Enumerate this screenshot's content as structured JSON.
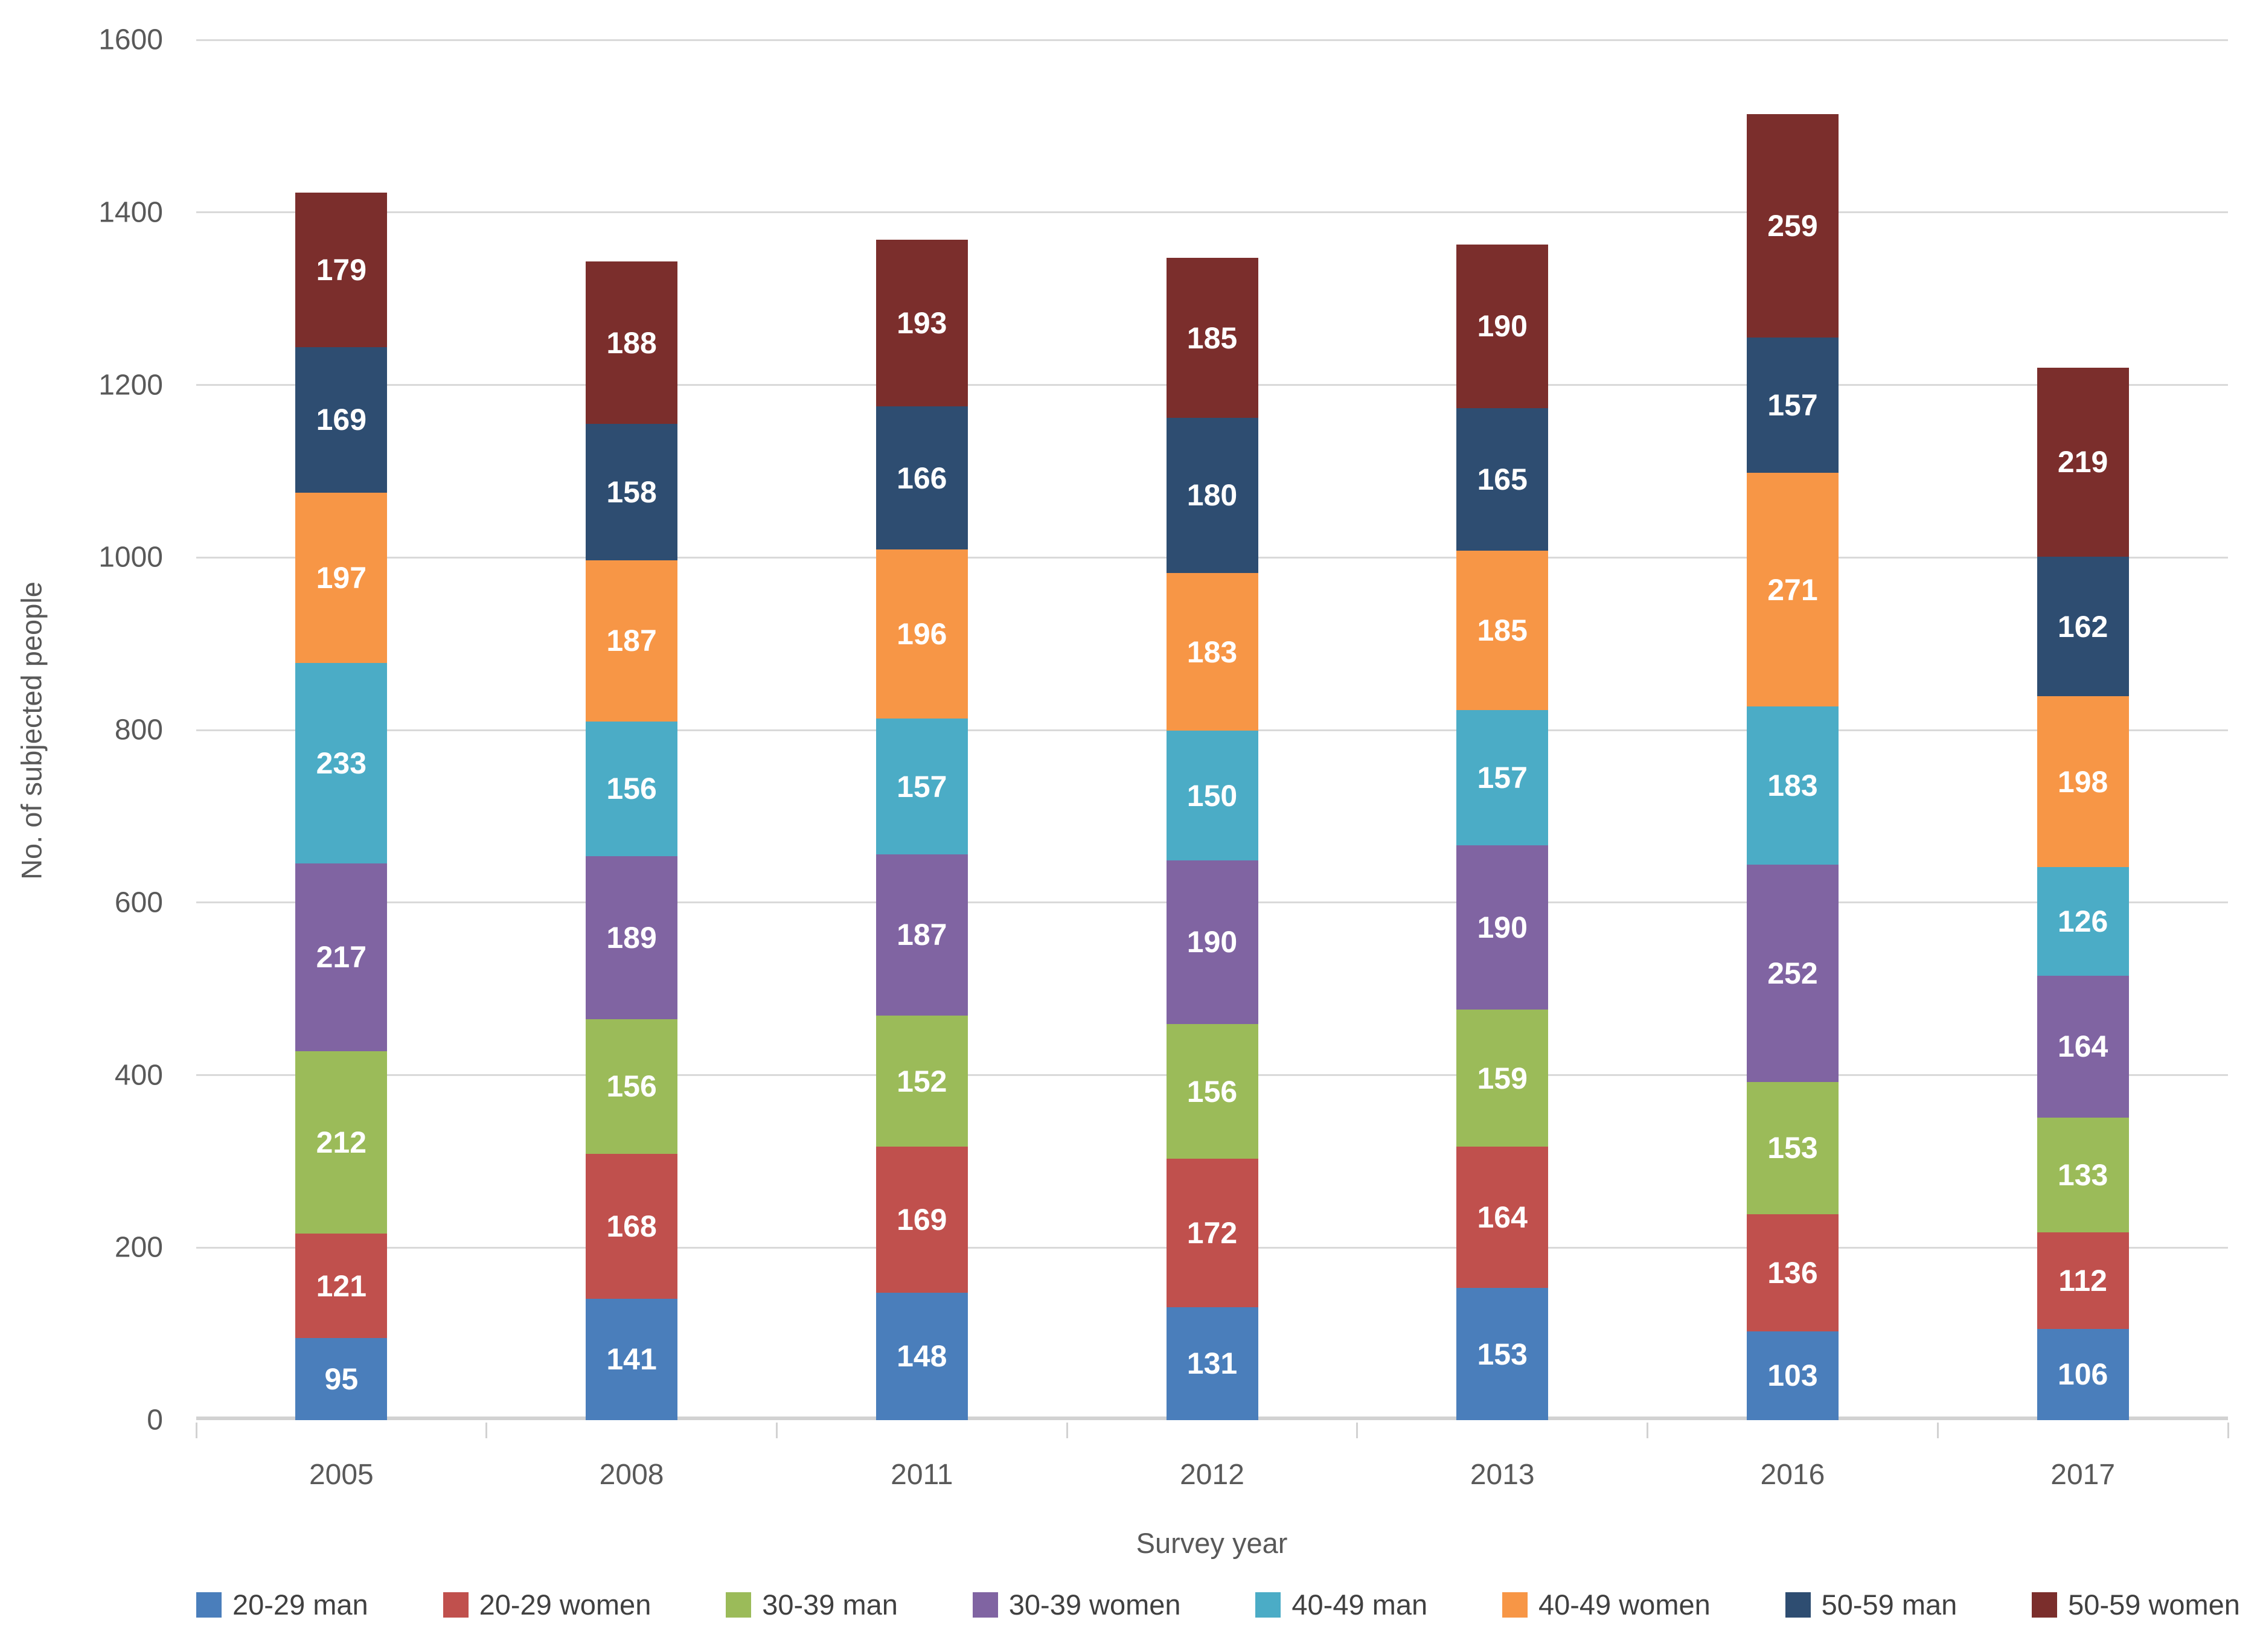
{
  "chart_data": {
    "type": "bar",
    "stacked": true,
    "title": "",
    "xlabel": "Survey year",
    "ylabel": "No. of subjected people",
    "categories": [
      "2005",
      "2008",
      "2011",
      "2012",
      "2013",
      "2016",
      "2017"
    ],
    "series": [
      {
        "name": "20-29 man",
        "color": "#4A7EBB",
        "values": [
          95,
          141,
          148,
          131,
          153,
          103,
          106
        ]
      },
      {
        "name": "20-29 women",
        "color": "#C0504D",
        "values": [
          121,
          168,
          169,
          172,
          164,
          136,
          112
        ]
      },
      {
        "name": "30-39 man",
        "color": "#9BBB59",
        "values": [
          212,
          156,
          152,
          156,
          159,
          153,
          133
        ]
      },
      {
        "name": "30-39 women",
        "color": "#8064A2",
        "values": [
          217,
          189,
          187,
          190,
          190,
          252,
          164
        ]
      },
      {
        "name": "40-49 man",
        "color": "#4BACC6",
        "values": [
          233,
          156,
          157,
          150,
          157,
          183,
          126
        ]
      },
      {
        "name": "40-49 women",
        "color": "#F79646",
        "values": [
          197,
          187,
          196,
          183,
          185,
          271,
          198
        ]
      },
      {
        "name": "50-59 man",
        "color": "#2E4D71",
        "values": [
          169,
          158,
          166,
          180,
          165,
          157,
          162
        ]
      },
      {
        "name": "50-59 women",
        "color": "#7B2E2C",
        "values": [
          179,
          188,
          193,
          185,
          190,
          259,
          219
        ]
      }
    ],
    "ylim": [
      0,
      1600
    ],
    "ytick_step": 200,
    "yticks": [
      "0",
      "200",
      "400",
      "600",
      "800",
      "1000",
      "1200",
      "1400",
      "1600"
    ],
    "grid": true,
    "legend_position": "bottom",
    "colors": {
      "gridline": "#d9d9d9",
      "axis_text": "#595959",
      "legend_text": "#404040",
      "bar_label": "#ffffff"
    }
  }
}
